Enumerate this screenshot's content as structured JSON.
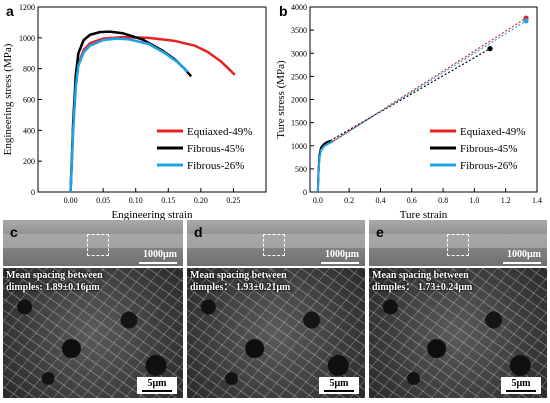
{
  "chart_data": [
    {
      "panel": "a",
      "type": "line",
      "xlabel": "Engineering strain",
      "ylabel": "Engineering stress (MPa)",
      "xlim": [
        -0.05,
        0.3
      ],
      "ylim": [
        0,
        1200
      ],
      "xticks": [
        "0.00",
        "0.05",
        "0.10",
        "0.15",
        "0.20",
        "0.25"
      ],
      "yticks": [
        "0",
        "200",
        "400",
        "600",
        "800",
        "1000",
        "1200"
      ],
      "legend_position": "bottom-right",
      "series": [
        {
          "name": "Equiaxed-49%",
          "color": "#e8231f",
          "x": [
            0.0,
            0.004,
            0.008,
            0.012,
            0.02,
            0.03,
            0.05,
            0.08,
            0.12,
            0.16,
            0.19,
            0.21,
            0.23,
            0.245,
            0.252
          ],
          "y": [
            0,
            420,
            700,
            830,
            920,
            965,
            995,
            1005,
            1000,
            980,
            950,
            910,
            850,
            790,
            760
          ]
        },
        {
          "name": "Fibrous-45%",
          "color": "#000000",
          "x": [
            0.0,
            0.004,
            0.008,
            0.012,
            0.02,
            0.03,
            0.045,
            0.06,
            0.08,
            0.11,
            0.14,
            0.16,
            0.175,
            0.185
          ],
          "y": [
            0,
            450,
            760,
            900,
            985,
            1020,
            1037,
            1040,
            1030,
            990,
            920,
            860,
            800,
            750
          ]
        },
        {
          "name": "Fibrous-26%",
          "color": "#1ea3e6",
          "x": [
            0.0,
            0.004,
            0.008,
            0.012,
            0.02,
            0.03,
            0.05,
            0.07,
            0.09,
            0.12,
            0.145,
            0.165,
            0.18
          ],
          "y": [
            0,
            400,
            680,
            820,
            905,
            950,
            985,
            995,
            990,
            960,
            900,
            840,
            780
          ]
        }
      ]
    },
    {
      "panel": "b",
      "type": "line",
      "xlabel": "Ture strain",
      "ylabel": "Ture stress (MPa)",
      "xlim": [
        -0.05,
        1.4
      ],
      "ylim": [
        0,
        4000
      ],
      "xticks": [
        "0.0",
        "0.2",
        "0.4",
        "0.6",
        "0.8",
        "1.0",
        "1.2",
        "1.4"
      ],
      "yticks": [
        "0",
        "500",
        "1000",
        "1500",
        "2000",
        "2500",
        "3000",
        "3500",
        "4000"
      ],
      "legend_position": "bottom-right",
      "series": [
        {
          "name": "Equiaxed-49%",
          "color": "#e8231f",
          "x": [
            0.0,
            0.005,
            0.01,
            0.02,
            0.04,
            0.07,
            0.1,
            1.33
          ],
          "y": [
            0,
            450,
            750,
            920,
            1000,
            1060,
            1100,
            3760
          ]
        },
        {
          "name": "Fibrous-45%",
          "color": "#000000",
          "x": [
            0.0,
            0.005,
            0.01,
            0.02,
            0.04,
            0.06,
            0.08,
            1.1
          ],
          "y": [
            0,
            480,
            800,
            960,
            1040,
            1080,
            1110,
            3100
          ]
        },
        {
          "name": "Fibrous-26%",
          "color": "#1ea3e6",
          "x": [
            0.0,
            0.005,
            0.01,
            0.02,
            0.04,
            0.07,
            0.09,
            1.33
          ],
          "y": [
            0,
            420,
            720,
            900,
            990,
            1050,
            1080,
            3700
          ]
        }
      ],
      "fracture_points": [
        {
          "series": "Equiaxed-49%",
          "x": 1.33,
          "y": 3760
        },
        {
          "series": "Fibrous-45%",
          "x": 1.1,
          "y": 3100
        },
        {
          "series": "Fibrous-26%",
          "x": 1.33,
          "y": 3700
        }
      ]
    }
  ],
  "panels": {
    "a": "a",
    "b": "b",
    "c": {
      "letter": "c",
      "scale_top": "1000μm",
      "mean_line1": "Mean spacing between",
      "mean_line2": "dimples:  1.89±0.16μm",
      "scale_bottom": "5μm"
    },
    "d": {
      "letter": "d",
      "scale_top": "1000μm",
      "mean_line1": "Mean spacing between",
      "mean_line2": "dimples：  1.93±0.21μm",
      "scale_bottom": "5μm"
    },
    "e": {
      "letter": "e",
      "scale_top": "1000μm",
      "mean_line1": "Mean spacing between",
      "mean_line2": "dimples：  1.73±0.24μm",
      "scale_bottom": "5μm"
    }
  }
}
